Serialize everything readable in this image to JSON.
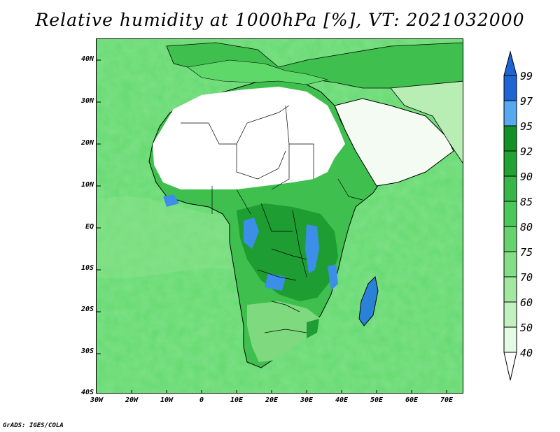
{
  "title": "Relative humidity at 1000hPa [%], VT: 2021032000",
  "credit": "GrADS: IGES/COLA",
  "map": {
    "lat_ticks": [
      "40N",
      "30N",
      "20N",
      "10N",
      "EQ",
      "10S",
      "20S",
      "30S",
      "40S"
    ],
    "lon_ticks": [
      "30W",
      "20W",
      "10W",
      "0",
      "10E",
      "20E",
      "30E",
      "40E",
      "50E",
      "60E",
      "70E"
    ],
    "lon_range": [
      -30,
      75
    ],
    "lat_range": [
      -40,
      45
    ],
    "colors": {
      "ocean_base": "#5fd86a",
      "land_dry": "#ffffff",
      "green_70": "#4cc652",
      "green_85": "#2eb23c",
      "green_92": "#169a2a",
      "blue_97": "#3c8fe8",
      "blue_99": "#1e64d2"
    }
  },
  "colorbar": {
    "labels": [
      "99",
      "97",
      "95",
      "92",
      "90",
      "85",
      "80",
      "75",
      "70",
      "60",
      "50",
      "40"
    ],
    "colors": [
      "#1e64d2",
      "#3c8fe8",
      "#58a8f0",
      "#129126",
      "#20a332",
      "#38b648",
      "#4cc75a",
      "#66d36e",
      "#84de86",
      "#a2e8a0",
      "#c2f1bf",
      "#e4fae2"
    ]
  }
}
